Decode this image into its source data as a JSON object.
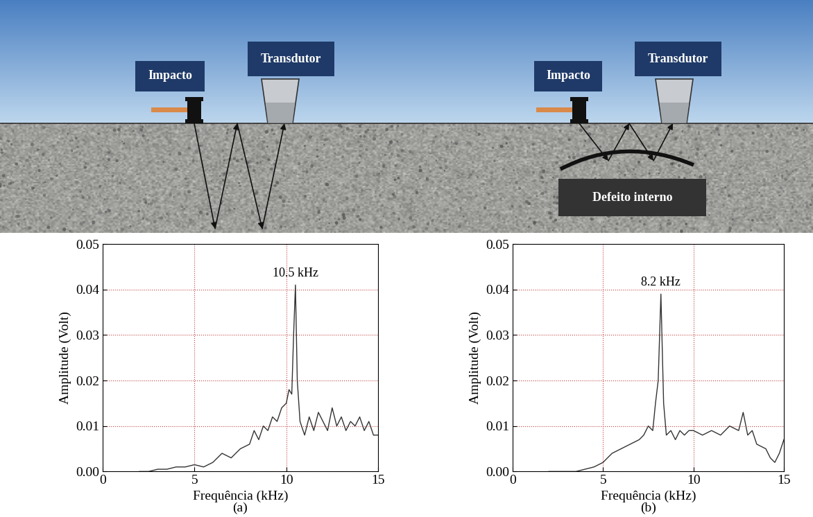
{
  "diagram": {
    "panels": [
      {
        "impact_label": "Impacto",
        "transducer_label": "Transdutor"
      },
      {
        "impact_label": "Impacto",
        "transducer_label": "Transdutor",
        "defect_label": "Defeito interno"
      }
    ]
  },
  "chart_data": [
    {
      "type": "line",
      "caption": "(a)",
      "x_label": "Frequência (kHz)",
      "y_label": "Amplitude (Volt)",
      "x": [
        2.0,
        2.5,
        3.0,
        3.5,
        4.0,
        4.5,
        5.0,
        5.5,
        6.0,
        6.5,
        7.0,
        7.5,
        8.0,
        8.25,
        8.5,
        8.75,
        9.0,
        9.25,
        9.5,
        9.75,
        10.0,
        10.15,
        10.3,
        10.4,
        10.5,
        10.6,
        10.75,
        11.0,
        11.25,
        11.5,
        11.75,
        12.0,
        12.25,
        12.5,
        12.75,
        13.0,
        13.25,
        13.5,
        13.75,
        14.0,
        14.25,
        14.5,
        14.75,
        15.0
      ],
      "values": [
        0.0,
        0.0,
        0.0005,
        0.0005,
        0.001,
        0.001,
        0.0015,
        0.001,
        0.002,
        0.004,
        0.003,
        0.005,
        0.006,
        0.009,
        0.007,
        0.01,
        0.009,
        0.012,
        0.011,
        0.014,
        0.015,
        0.018,
        0.017,
        0.03,
        0.041,
        0.02,
        0.011,
        0.008,
        0.012,
        0.009,
        0.013,
        0.011,
        0.009,
        0.014,
        0.01,
        0.012,
        0.009,
        0.011,
        0.01,
        0.012,
        0.009,
        0.011,
        0.008,
        0.008
      ],
      "color": "#333333",
      "line_style": "solid",
      "grid": true,
      "xlim": [
        0,
        15
      ],
      "xticks": [
        0,
        5,
        10,
        15
      ],
      "ylim": [
        0,
        0.05
      ],
      "yticks": [
        {
          "value": 0,
          "label": "0.00"
        },
        {
          "value": 0.01,
          "label": "0.01"
        },
        {
          "value": 0.02,
          "label": "0.02"
        },
        {
          "value": 0.03,
          "label": "0.03"
        },
        {
          "value": 0.04,
          "label": "0.04"
        },
        {
          "value": 0.05,
          "label": "0.05"
        }
      ],
      "annotations": [
        {
          "text": "10.5 kHz",
          "x": 10.5,
          "y": 0.041
        }
      ]
    },
    {
      "type": "line",
      "caption": "(b)",
      "x_label": "Frequência (kHz)",
      "y_label": "Amplitude (Volt)",
      "x": [
        2.0,
        2.5,
        3.0,
        3.5,
        4.0,
        4.5,
        5.0,
        5.5,
        6.0,
        6.5,
        7.0,
        7.25,
        7.5,
        7.75,
        7.9,
        8.05,
        8.2,
        8.35,
        8.5,
        8.75,
        9.0,
        9.25,
        9.5,
        9.75,
        10.0,
        10.5,
        11.0,
        11.5,
        12.0,
        12.5,
        12.75,
        13.0,
        13.25,
        13.5,
        14.0,
        14.25,
        14.5,
        14.75,
        15.0
      ],
      "values": [
        0.0,
        0.0,
        0.0,
        0.0,
        0.0005,
        0.001,
        0.002,
        0.004,
        0.005,
        0.006,
        0.007,
        0.008,
        0.01,
        0.009,
        0.015,
        0.02,
        0.039,
        0.015,
        0.008,
        0.009,
        0.007,
        0.009,
        0.008,
        0.009,
        0.009,
        0.008,
        0.009,
        0.008,
        0.01,
        0.009,
        0.013,
        0.008,
        0.009,
        0.006,
        0.005,
        0.003,
        0.002,
        0.004,
        0.007
      ],
      "color": "#333333",
      "line_style": "solid",
      "grid": true,
      "xlim": [
        0,
        15
      ],
      "xticks": [
        0,
        5,
        10,
        15
      ],
      "ylim": [
        0,
        0.05
      ],
      "yticks": [
        {
          "value": 0,
          "label": "0.00"
        },
        {
          "value": 0.01,
          "label": "0.01"
        },
        {
          "value": 0.02,
          "label": "0.02"
        },
        {
          "value": 0.03,
          "label": "0.03"
        },
        {
          "value": 0.04,
          "label": "0.04"
        },
        {
          "value": 0.05,
          "label": "0.05"
        }
      ],
      "annotations": [
        {
          "text": "8.2 kHz",
          "x": 8.2,
          "y": 0.039
        }
      ]
    }
  ]
}
